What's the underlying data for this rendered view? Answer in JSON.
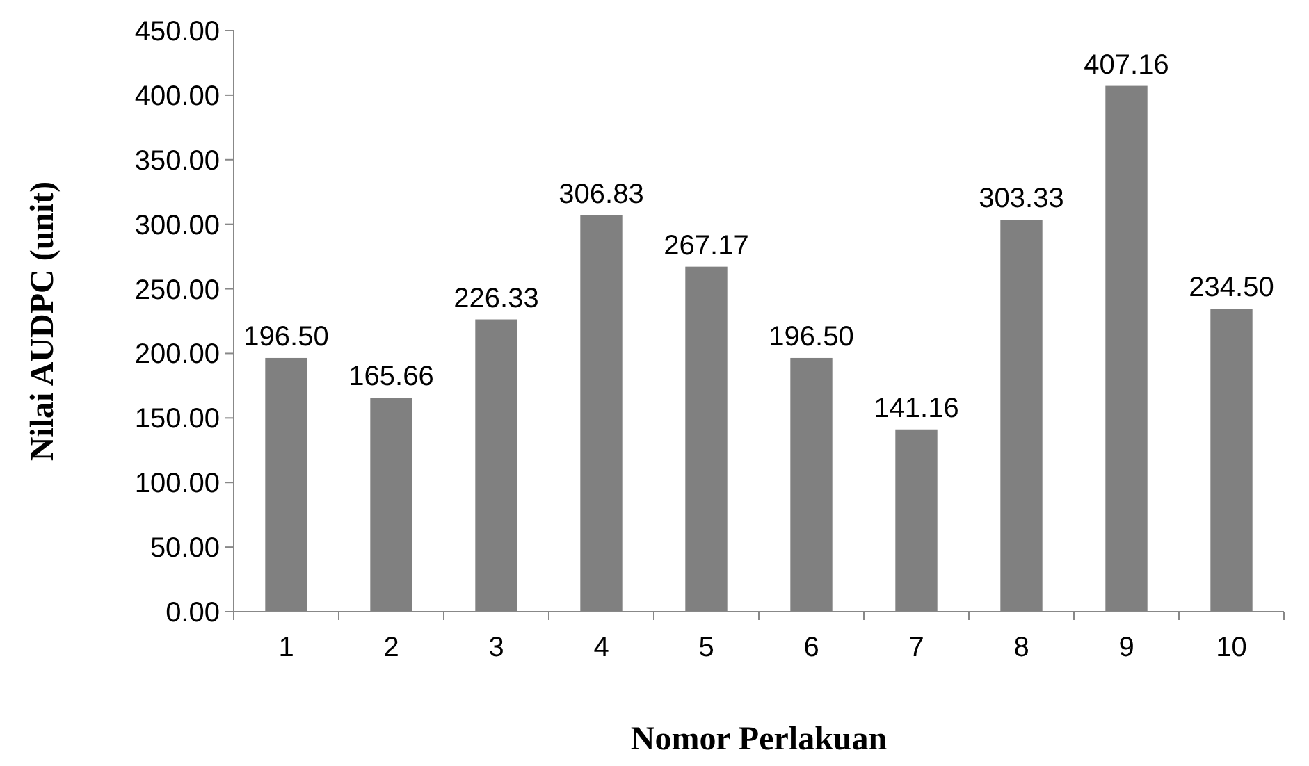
{
  "chart_data": {
    "type": "bar",
    "xlabel": "Nomor Perlakuan",
    "ylabel": "Nilai AUDPC (unit)",
    "categories": [
      "1",
      "2",
      "3",
      "4",
      "5",
      "6",
      "7",
      "8",
      "9",
      "10"
    ],
    "values": [
      196.5,
      165.66,
      226.33,
      306.83,
      267.17,
      196.5,
      141.16,
      303.33,
      407.16,
      234.5
    ],
    "value_labels": [
      "196.50",
      "165.66",
      "226.33",
      "306.83",
      "267.17",
      "196.50",
      "141.16",
      "303.33",
      "407.16",
      "234.50"
    ],
    "color": "#808080",
    "ylim": [
      0,
      450
    ],
    "yticks": [
      {
        "value": 0,
        "label": "0.00"
      },
      {
        "value": 50,
        "label": "50.00"
      },
      {
        "value": 100,
        "label": "100.00"
      },
      {
        "value": 150,
        "label": "150.00"
      },
      {
        "value": 200,
        "label": "200.00"
      },
      {
        "value": 250,
        "label": "250.00"
      },
      {
        "value": 300,
        "label": "300.00"
      },
      {
        "value": 350,
        "label": "350.00"
      },
      {
        "value": 400,
        "label": "400.00"
      },
      {
        "value": 450,
        "label": "450.00"
      }
    ],
    "grid": false
  }
}
